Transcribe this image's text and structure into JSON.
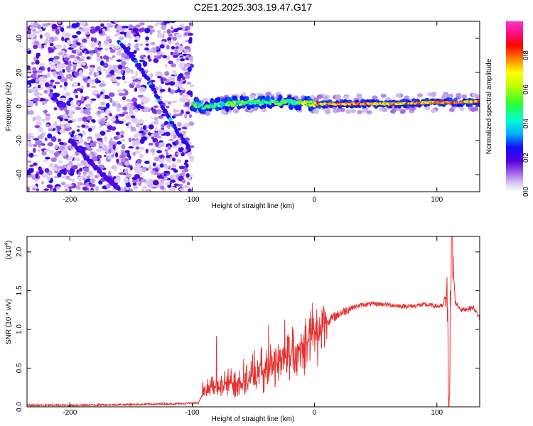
{
  "figure_title": "C2E1.2025.303.19.47.G17",
  "chart_data": [
    {
      "type": "heatmap",
      "title": "C2E1.2025.303.19.47.G17",
      "xlabel": "Height of straight line (km)",
      "ylabel": "Frequency (Hz)",
      "xlim": [
        -235,
        135
      ],
      "ylim": [
        -50,
        50
      ],
      "xticks": [
        -200,
        -100,
        0,
        100
      ],
      "yticks": [
        -40,
        -20,
        0,
        20,
        40
      ],
      "xtick_labels": [
        "-200",
        "-100",
        "0",
        "100"
      ],
      "ytick_labels": [
        "-40",
        "-20",
        "0",
        "20",
        "40"
      ],
      "noise_region_x": [
        -235,
        -100
      ],
      "colorbar": {
        "label": "Normalized spectral amplitude",
        "range": [
          0.0,
          1.0
        ],
        "ticks": [
          0.0,
          0.2,
          0.4,
          0.6,
          0.8
        ],
        "tick_labels": [
          "0.0",
          "0.2",
          "0.4",
          "0.6",
          "0.8"
        ],
        "colors": [
          "#ffffff",
          "#d8c8f0",
          "#9a55e8",
          "#5500dd",
          "#1010ff",
          "#00b0ff",
          "#00ffd0",
          "#30ff30",
          "#c0ff00",
          "#ffff00",
          "#ff8000",
          "#ff0000",
          "#ff1080",
          "#ff33cc"
        ]
      },
      "features": [
        {
          "name": "descending trace upper",
          "points": [
            [
              -160,
              38
            ],
            [
              -150,
              30
            ],
            [
              -140,
              20
            ],
            [
              -130,
              8
            ],
            [
              -120,
              -6
            ],
            [
              -110,
              -17
            ],
            [
              -103,
              -24
            ]
          ]
        },
        {
          "name": "descending trace lower",
          "points": [
            [
              -200,
              -20
            ],
            [
              -190,
              -27
            ],
            [
              -180,
              -35
            ],
            [
              -170,
              -42
            ],
            [
              -160,
              -48
            ]
          ]
        },
        {
          "name": "signal band",
          "points": [
            [
              -100,
              1.5
            ],
            [
              -90,
              0
            ],
            [
              -80,
              1
            ],
            [
              -60,
              2
            ],
            [
              -40,
              2.5
            ],
            [
              -20,
              2.5
            ],
            [
              0,
              1.5
            ],
            [
              20,
              1.5
            ],
            [
              40,
              1.5
            ],
            [
              60,
              1.5
            ],
            [
              80,
              2
            ],
            [
              100,
              2.5
            ],
            [
              120,
              2.5
            ],
            [
              135,
              3
            ]
          ]
        }
      ]
    },
    {
      "type": "line",
      "title": "",
      "xlabel": "Height of straight line (km)",
      "ylabel": "SNR (10 * v/v)",
      "yscale_label": "(x10",
      "yscale_exp": "4",
      "yscale_close": ")",
      "xlim": [
        -235,
        135
      ],
      "ylim": [
        0,
        2.2
      ],
      "xticks": [
        -200,
        -100,
        0,
        100
      ],
      "yticks": [
        0.0,
        0.5,
        1.0,
        1.5,
        2.0
      ],
      "xtick_labels": [
        "-200",
        "-100",
        "0",
        "100"
      ],
      "ytick_labels": [
        "0.0",
        "0.5",
        "1.0",
        "1.5",
        "2.0"
      ],
      "series": [
        {
          "name": "SNR",
          "color": "#e83030",
          "x": [
            -235,
            -200,
            -150,
            -110,
            -95,
            -90,
            -85,
            -80,
            -70,
            -60,
            -50,
            -40,
            -30,
            -20,
            -10,
            0,
            10,
            20,
            30,
            40,
            50,
            60,
            70,
            80,
            90,
            100,
            105,
            108,
            110,
            112,
            115,
            120,
            130,
            135
          ],
          "y": [
            0.02,
            0.02,
            0.03,
            0.04,
            0.05,
            0.2,
            0.25,
            0.25,
            0.3,
            0.35,
            0.4,
            0.5,
            0.6,
            0.7,
            0.8,
            0.95,
            1.1,
            1.2,
            1.28,
            1.32,
            1.33,
            1.32,
            1.3,
            1.3,
            1.32,
            1.3,
            1.3,
            1.5,
            0.1,
            2.2,
            1.35,
            1.25,
            1.28,
            1.15
          ]
        }
      ]
    }
  ]
}
